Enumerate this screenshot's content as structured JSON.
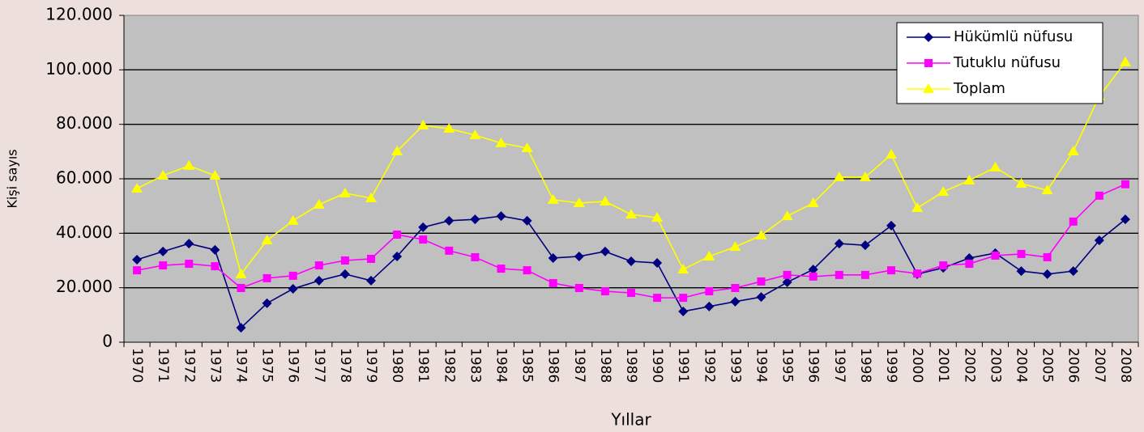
{
  "chart_data": {
    "type": "line",
    "x_label": "Yıllar",
    "y_label": "Kişi sayıs",
    "categories": [
      "1970",
      "1971",
      "1972",
      "1973",
      "1974",
      "1975",
      "1976",
      "1977",
      "1978",
      "1979",
      "1980",
      "1981",
      "1982",
      "1983",
      "1984",
      "1985",
      "1986",
      "1987",
      "1988",
      "1989",
      "1990",
      "1991",
      "1992",
      "1993",
      "1994",
      "1995",
      "1996",
      "1997",
      "1998",
      "1999",
      "2000",
      "2001",
      "2002",
      "2003",
      "2004",
      "2005",
      "2006",
      "2007",
      "2008"
    ],
    "series": [
      {
        "name": "Hükümlü nüfusu",
        "color": "#000080",
        "marker": "diamond",
        "values": [
          30300,
          33300,
          36200,
          33900,
          5300,
          14300,
          19600,
          22600,
          25000,
          22600,
          31500,
          42200,
          44600,
          45100,
          46300,
          44600,
          30900,
          31500,
          33300,
          29700,
          29100,
          11300,
          13100,
          14900,
          16600,
          22000,
          26700,
          36200,
          35600,
          42800,
          25000,
          27300,
          30900,
          32700,
          26100,
          25000,
          26100,
          37400,
          45100
        ]
      },
      {
        "name": "Tutuklu nüfusu",
        "color": "#ff00ff",
        "marker": "square",
        "values": [
          26400,
          28200,
          28800,
          27900,
          19900,
          23500,
          24400,
          28200,
          30000,
          30600,
          39500,
          37700,
          33600,
          31200,
          27000,
          26400,
          21700,
          19900,
          18700,
          18100,
          16300,
          16300,
          18700,
          19900,
          22300,
          24700,
          24100,
          24700,
          24700,
          26400,
          25200,
          28200,
          28800,
          31800,
          32400,
          31200,
          44300,
          53800,
          58000
        ]
      },
      {
        "name": "Toplam",
        "color": "#ffff00",
        "marker": "triangle",
        "values": [
          56400,
          61200,
          64800,
          61200,
          25000,
          37400,
          44600,
          50500,
          54700,
          52900,
          70100,
          79600,
          78400,
          76000,
          73100,
          71300,
          52300,
          51100,
          51700,
          46900,
          45700,
          26700,
          31500,
          35000,
          39200,
          46300,
          51100,
          60600,
          60600,
          68900,
          49300,
          55200,
          59400,
          64200,
          58200,
          55800,
          70100,
          90300,
          102800
        ]
      }
    ],
    "ylim": [
      0,
      120000
    ],
    "yticks": [
      0,
      {
        "value": 20000,
        "label": "20.000"
      },
      {
        "value": 40000,
        "label": "40.000"
      },
      {
        "value": 60000,
        "label": "60.000"
      },
      {
        "value": 80000,
        "label": "80.000"
      },
      {
        "value": 100000,
        "label": "100.000"
      },
      {
        "value": 120000,
        "label": "120.000"
      }
    ],
    "grid": true,
    "legend_position": "top-right"
  }
}
